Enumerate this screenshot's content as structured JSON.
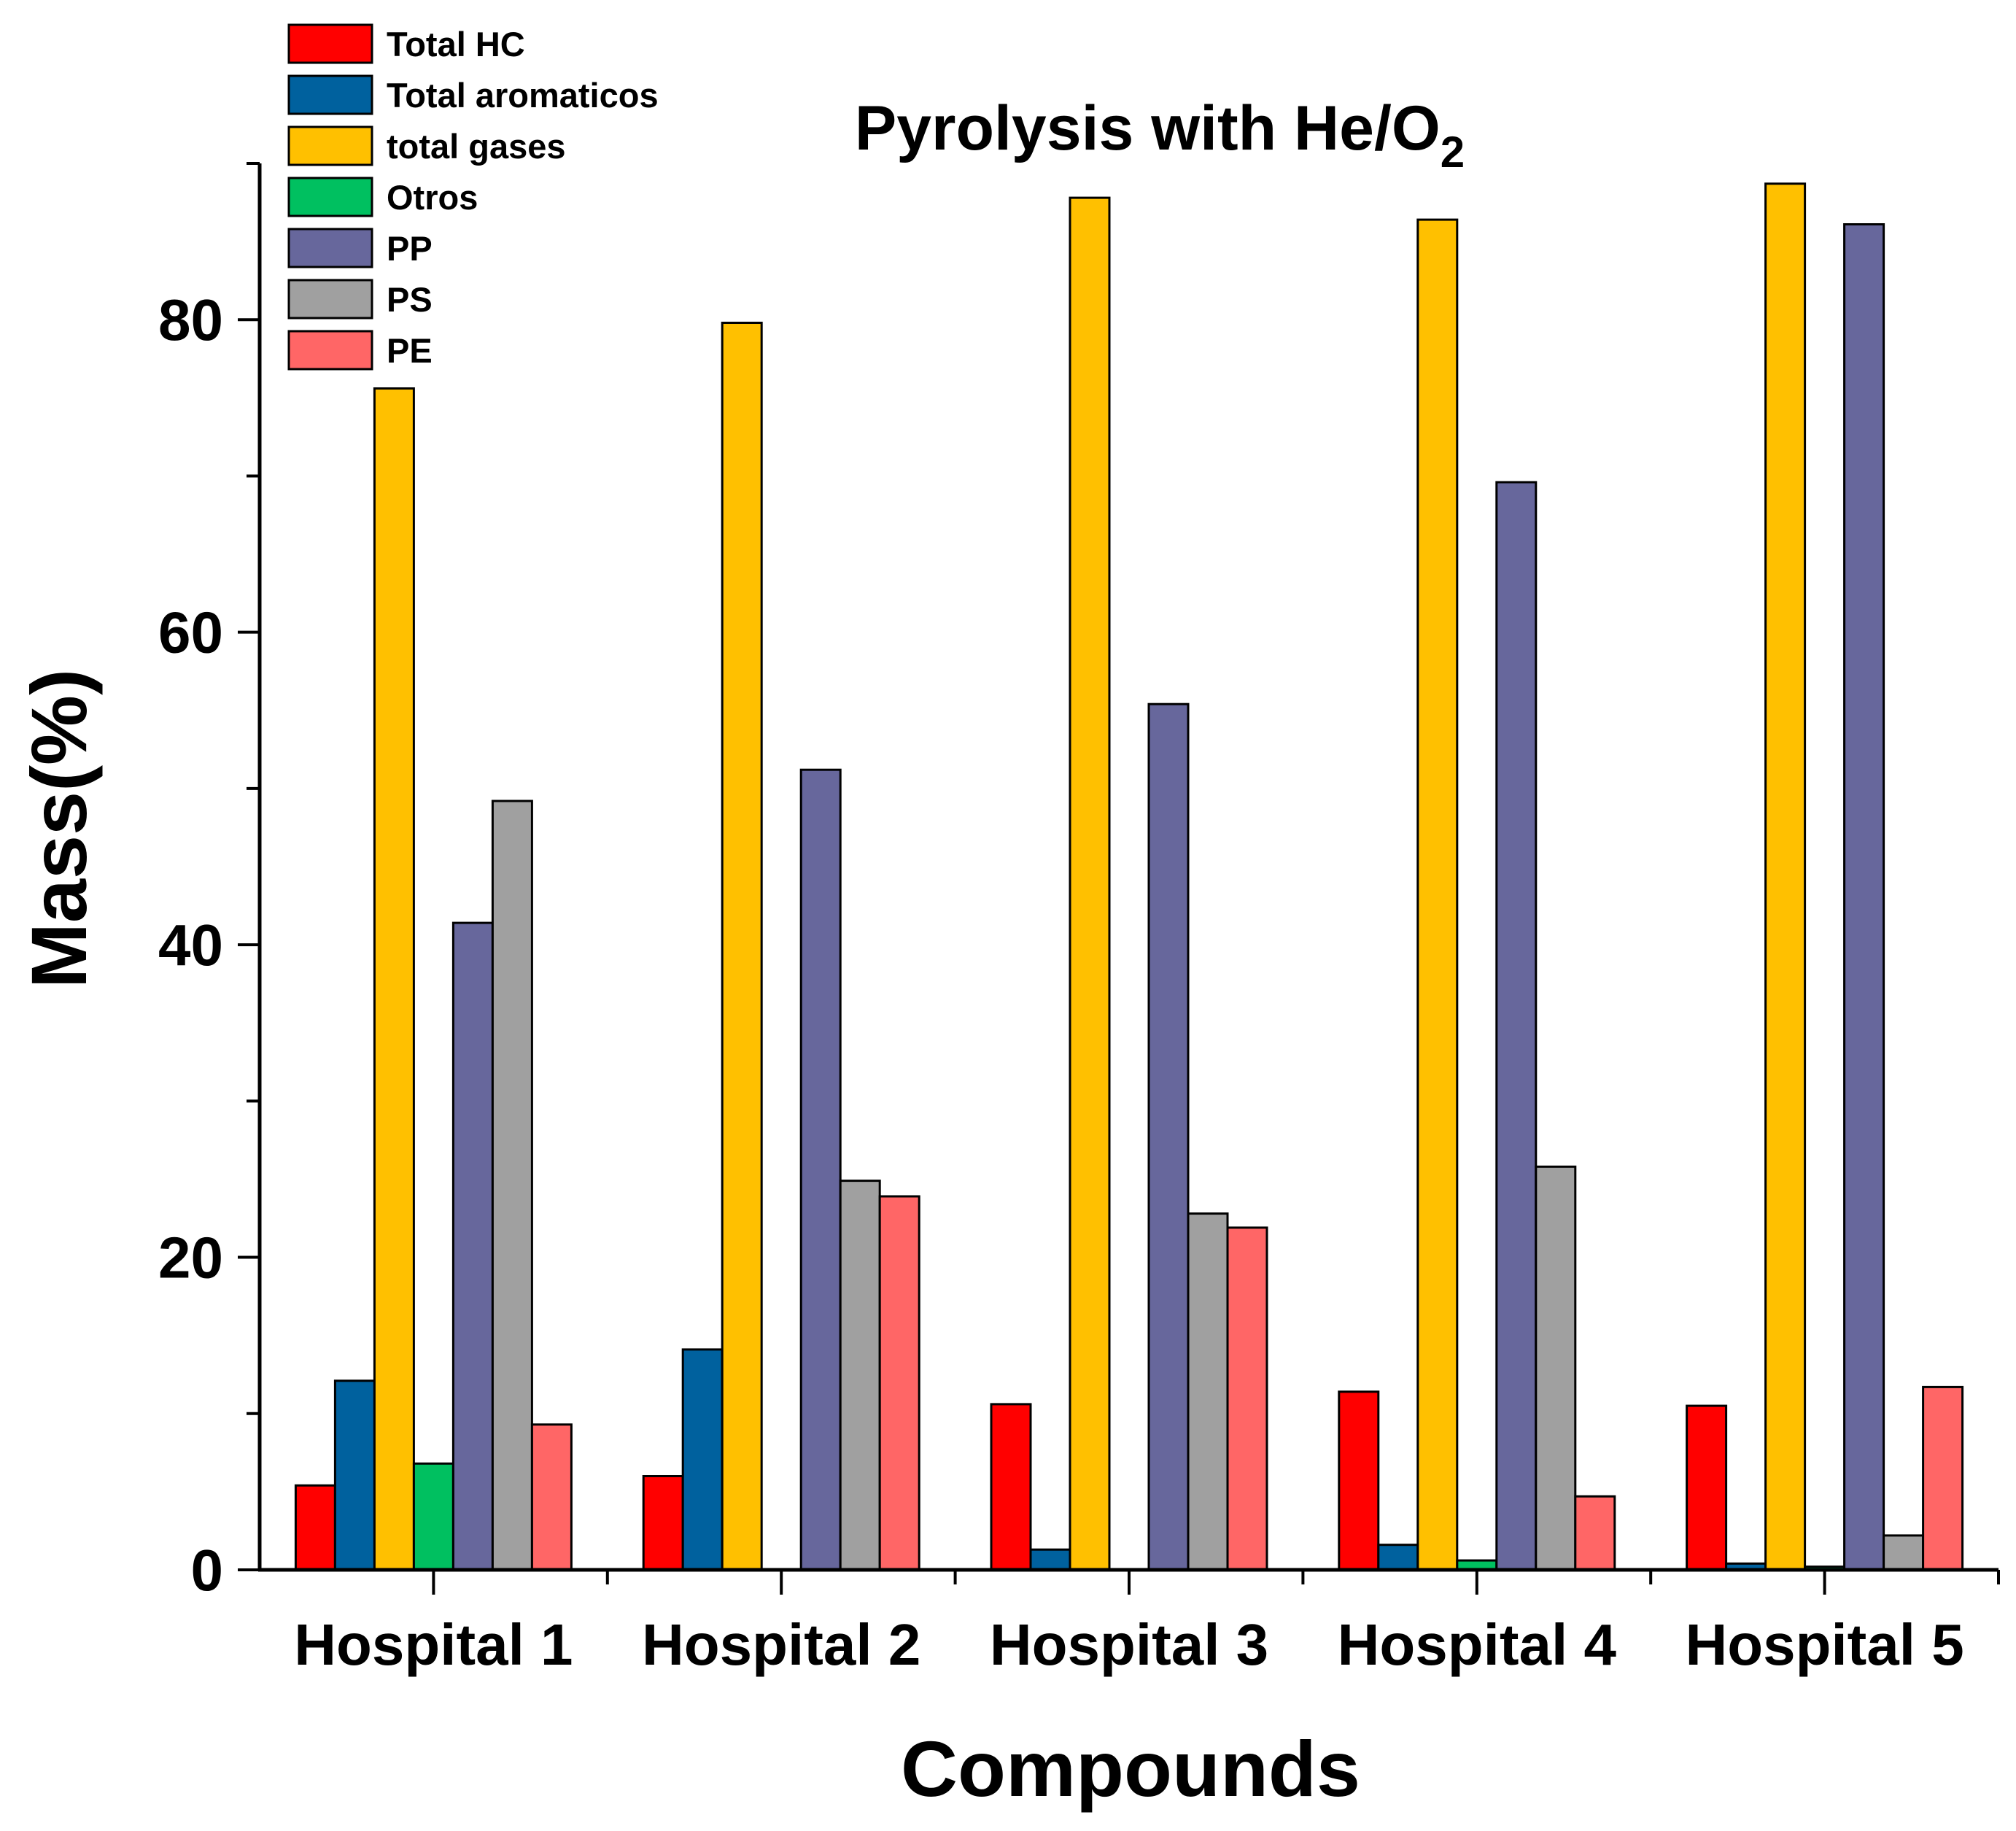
{
  "chart_data": {
    "type": "bar",
    "title": "Pyrolysis with He/O",
    "title_subscript": "2",
    "xlabel": "Compounds",
    "ylabel": "Mass(%)",
    "ylim": [
      0,
      90
    ],
    "yticks": [
      0,
      20,
      40,
      60,
      80
    ],
    "categories": [
      "Hospital 1",
      "Hospital 2",
      "Hospital 3",
      "Hospital 4",
      "Hospital 5"
    ],
    "legend_position": "top-left",
    "series": [
      {
        "name": "Total HC",
        "color": "#ff0000",
        "values": [
          5.4,
          6.0,
          10.6,
          11.4,
          10.5
        ]
      },
      {
        "name": "Total aromaticos",
        "color": "#00619e",
        "values": [
          12.1,
          14.1,
          1.3,
          1.6,
          0.4
        ]
      },
      {
        "name": "total gases",
        "color": "#ffc000",
        "values": [
          75.6,
          79.8,
          87.8,
          86.4,
          88.7
        ]
      },
      {
        "name": "Otros",
        "color": "#00c060",
        "values": [
          6.8,
          0,
          0,
          0.6,
          0.2
        ]
      },
      {
        "name": "PP",
        "color": "#67679c",
        "values": [
          41.4,
          51.2,
          55.4,
          69.6,
          86.1
        ]
      },
      {
        "name": "PS",
        "color": "#a0a0a0",
        "values": [
          49.2,
          24.9,
          22.8,
          25.8,
          2.2
        ]
      },
      {
        "name": "PE",
        "color": "#ff6666",
        "values": [
          9.3,
          23.9,
          21.9,
          4.7,
          11.7
        ]
      }
    ]
  }
}
